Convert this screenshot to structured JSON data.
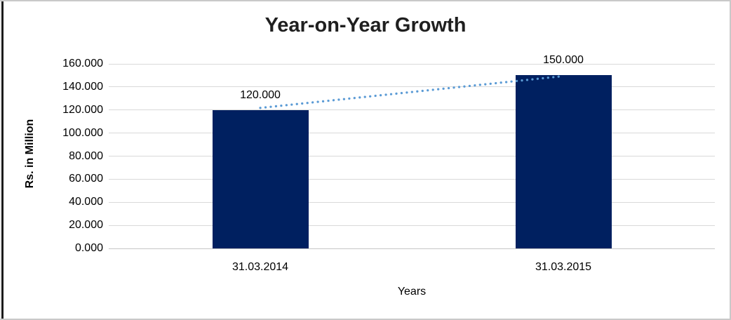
{
  "chart_data": {
    "type": "bar",
    "title": "Year-on-Year Growth",
    "xlabel": "Years",
    "ylabel": "Rs. in Million",
    "categories": [
      "31.03.2014",
      "31.03.2015"
    ],
    "values": [
      120,
      150
    ],
    "value_labels": [
      "120.000",
      "150.000"
    ],
    "ylim": [
      0,
      160
    ],
    "ytick_step": 20,
    "ytick_labels": [
      "0.000",
      "20.000",
      "40.000",
      "60.000",
      "80.000",
      "100.000",
      "120.000",
      "140.000",
      "160.000"
    ],
    "grid": true,
    "legend": "none",
    "bar_color": "#002060",
    "gridline_color": "#d9d9d9",
    "axis_line_color": "#c6c6c6",
    "trendline": {
      "style": "dotted",
      "color": "#5b9bd5",
      "from_category": "31.03.2014",
      "to_category": "31.03.2015"
    }
  }
}
